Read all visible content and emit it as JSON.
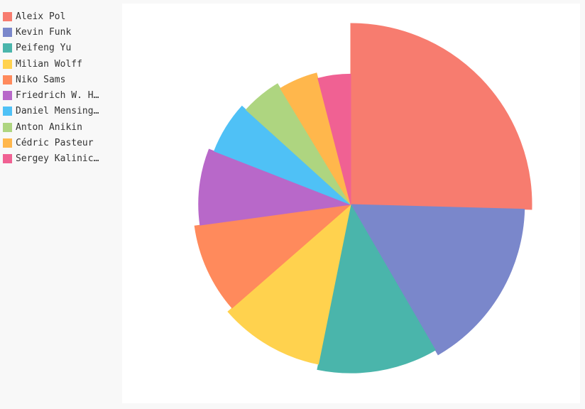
{
  "chart_data": {
    "type": "pie",
    "title": "",
    "legend_position": "left",
    "series": [
      {
        "name": "Aleix Pol",
        "color": "#f77c6f"
      },
      {
        "name": "Kevin Funk",
        "color": "#7a87cb"
      },
      {
        "name": "Peifeng Yu",
        "color": "#4ab5ab"
      },
      {
        "name": "Milian Wolff",
        "color": "#ffd24e"
      },
      {
        "name": "Niko Sams",
        "color": "#ff8a5c"
      },
      {
        "name": "Friedrich W. H…",
        "color": "#b868c9"
      },
      {
        "name": "Daniel Mensing…",
        "color": "#4fc1f6"
      },
      {
        "name": "Anton Anikin",
        "color": "#aed580"
      },
      {
        "name": "Cédric Pasteur",
        "color": "#ffb74c"
      },
      {
        "name": "Sergey Kalinic…",
        "color": "#f06193"
      }
    ],
    "values": [
      22,
      14,
      10,
      9,
      8,
      7,
      5,
      4,
      4,
      3.5
    ],
    "relative_radius": [
      1.0,
      0.96,
      0.93,
      0.9,
      0.87,
      0.84,
      0.81,
      0.78,
      0.75,
      0.72
    ]
  }
}
